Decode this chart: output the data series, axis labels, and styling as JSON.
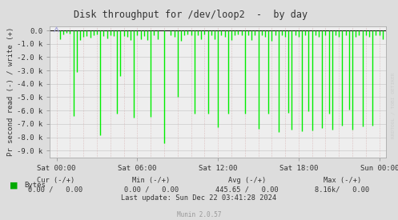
{
  "title": "Disk throughput for /dev/loop2  -  by day",
  "ylabel": "Pr second read (-) / write (+)",
  "bg_color": "#DDDDDD",
  "plot_bg_color": "#EEEEEE",
  "grid_color_h": "#CCCCCC",
  "grid_color_v": "#CC9999",
  "line_color": "#00EE00",
  "border_color": "#AAAAAA",
  "ylim": [
    -9500,
    300
  ],
  "yticks": [
    0.0,
    -1000,
    -2000,
    -3000,
    -4000,
    -5000,
    -6000,
    -7000,
    -8000,
    -9000
  ],
  "ytick_labels": [
    "0.0",
    "-1.0 k",
    "-2.0 k",
    "-3.0 k",
    "-4.0 k",
    "-5.0 k",
    "-6.0 k",
    "-7.0 k",
    "-8.0 k",
    "-9.0 k"
  ],
  "xtick_positions": [
    0,
    21600,
    43200,
    64800,
    86400
  ],
  "xtick_labels": [
    "Sat 00:00",
    "Sat 06:00",
    "Sat 12:00",
    "Sat 18:00",
    "Sun 00:00"
  ],
  "legend_label": "Bytes",
  "legend_color": "#00AA00",
  "footer_munin": "Munin 2.0.57",
  "side_text": "RRDTOOL / TOBI OETIKER",
  "total_seconds": 86400,
  "xlim_min": -1800,
  "xlim_max": 88200,
  "spike_data": [
    [
      900,
      -650
    ],
    [
      1800,
      -300
    ],
    [
      2700,
      -200
    ],
    [
      3600,
      -250
    ],
    [
      4500,
      -6400
    ],
    [
      5400,
      -3100
    ],
    [
      6300,
      -700
    ],
    [
      7200,
      -500
    ],
    [
      8100,
      -400
    ],
    [
      9000,
      -550
    ],
    [
      9900,
      -350
    ],
    [
      10800,
      -300
    ],
    [
      11700,
      -7850
    ],
    [
      12600,
      -400
    ],
    [
      13500,
      -600
    ],
    [
      14400,
      -350
    ],
    [
      15300,
      -400
    ],
    [
      16200,
      -6250
    ],
    [
      17100,
      -3400
    ],
    [
      18000,
      -400
    ],
    [
      18900,
      -500
    ],
    [
      19800,
      -700
    ],
    [
      20700,
      -6550
    ],
    [
      21600,
      -350
    ],
    [
      22500,
      -650
    ],
    [
      23400,
      -400
    ],
    [
      24300,
      -700
    ],
    [
      25200,
      -6450
    ],
    [
      26100,
      -350
    ],
    [
      27000,
      -650
    ],
    [
      28800,
      -8450
    ],
    [
      30600,
      -350
    ],
    [
      31500,
      -450
    ],
    [
      32400,
      -4950
    ],
    [
      33300,
      -750
    ],
    [
      34200,
      -350
    ],
    [
      35100,
      -280
    ],
    [
      36000,
      -350
    ],
    [
      36900,
      -6250
    ],
    [
      37800,
      -350
    ],
    [
      38700,
      -650
    ],
    [
      39600,
      -280
    ],
    [
      40500,
      -6250
    ],
    [
      41400,
      -350
    ],
    [
      42300,
      -650
    ],
    [
      43200,
      -7250
    ],
    [
      44100,
      -350
    ],
    [
      45000,
      -450
    ],
    [
      45900,
      -6200
    ],
    [
      46800,
      -700
    ],
    [
      47700,
      -350
    ],
    [
      48600,
      -280
    ],
    [
      49500,
      -350
    ],
    [
      50400,
      -6200
    ],
    [
      51300,
      -350
    ],
    [
      52200,
      -700
    ],
    [
      53100,
      -350
    ],
    [
      54000,
      -7350
    ],
    [
      54900,
      -380
    ],
    [
      55800,
      -500
    ],
    [
      56700,
      -6200
    ],
    [
      57600,
      -750
    ],
    [
      58500,
      -380
    ],
    [
      59400,
      -7600
    ],
    [
      60300,
      -350
    ],
    [
      61200,
      -450
    ],
    [
      62100,
      -6150
    ],
    [
      63000,
      -7400
    ],
    [
      63900,
      -380
    ],
    [
      64800,
      -500
    ],
    [
      65700,
      -7550
    ],
    [
      66600,
      -380
    ],
    [
      67500,
      -6050
    ],
    [
      68400,
      -7500
    ],
    [
      69300,
      -380
    ],
    [
      70200,
      -500
    ],
    [
      71100,
      -7300
    ],
    [
      72000,
      -380
    ],
    [
      72900,
      -6250
    ],
    [
      73800,
      -7450
    ],
    [
      74700,
      -380
    ],
    [
      75600,
      -480
    ],
    [
      76500,
      -7150
    ],
    [
      77400,
      -380
    ],
    [
      78300,
      -5900
    ],
    [
      79200,
      -7400
    ],
    [
      80100,
      -480
    ],
    [
      81000,
      -380
    ],
    [
      81900,
      -7200
    ],
    [
      82800,
      -380
    ],
    [
      83700,
      -450
    ],
    [
      84600,
      -7100
    ],
    [
      85500,
      -380
    ],
    [
      86400,
      -350
    ],
    [
      87300,
      -680
    ]
  ]
}
